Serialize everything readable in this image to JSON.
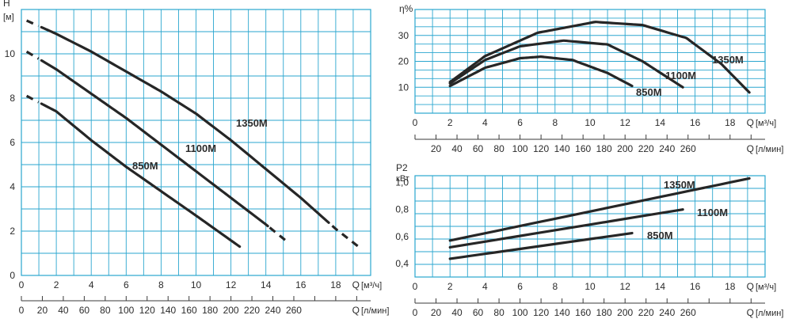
{
  "chart_data": [
    {
      "type": "line",
      "title": "",
      "ylabel": "H",
      "yunit": "[м]",
      "xlabel": "Q",
      "xunit": "[м³/ч]",
      "x2unit": "[л/мин]",
      "xlim": [
        0,
        20
      ],
      "ylim": [
        0,
        12
      ],
      "x_ticks": [
        "0",
        "2",
        "4",
        "6",
        "8",
        "10",
        "12",
        "14",
        "16",
        "18"
      ],
      "x2_ticks": [
        "0",
        "20",
        "40",
        "60",
        "80",
        "100",
        "120",
        "140",
        "160",
        "180",
        "200",
        "220",
        "240",
        "260"
      ],
      "y_ticks": [
        "0",
        "2",
        "4",
        "6",
        "8",
        "10"
      ],
      "series": [
        {
          "name": "850M",
          "x": [
            0.3,
            2,
            4,
            6,
            8,
            10,
            12.5
          ],
          "y": [
            8.1,
            7.4,
            6.1,
            4.9,
            3.8,
            2.7,
            1.3
          ],
          "dashed_until": 1
        },
        {
          "name": "1100M",
          "x": [
            0.3,
            2,
            4,
            6,
            8,
            10,
            12,
            14,
            15.1
          ],
          "y": [
            10.1,
            9.3,
            8.2,
            7.1,
            5.9,
            4.7,
            3.5,
            2.3,
            1.6
          ],
          "dashed_from": 14.2,
          "dashed_until": 1
        },
        {
          "name": "1350M",
          "x": [
            0.3,
            2,
            4,
            6,
            8,
            10,
            12,
            14,
            16,
            18,
            19.3
          ],
          "y": [
            11.5,
            10.9,
            10.1,
            9.2,
            8.3,
            7.3,
            6.1,
            4.8,
            3.5,
            2.1,
            1.3
          ],
          "dashed_from": 17.7,
          "dashed_until": 1
        }
      ]
    },
    {
      "type": "line",
      "title": "",
      "ylabel": "η%",
      "xlabel": "Q",
      "xunit": "[м³/ч]",
      "x2unit": "[л/мин]",
      "xlim": [
        0,
        20
      ],
      "ylim": [
        0,
        40
      ],
      "x_ticks": [
        "0",
        "2",
        "4",
        "6",
        "8",
        "10",
        "12",
        "14",
        "16",
        "18"
      ],
      "x2_ticks": [
        "20",
        "40",
        "60",
        "80",
        "100",
        "120",
        "140",
        "160",
        "180",
        "200",
        "220",
        "240",
        "260"
      ],
      "y_ticks": [
        "10",
        "20",
        "30"
      ],
      "series": [
        {
          "name": "850M",
          "x": [
            2,
            4,
            6,
            7.2,
            9,
            11,
            12.4
          ],
          "y": [
            10.5,
            17.5,
            21.2,
            21.8,
            20.5,
            15.5,
            10.5
          ]
        },
        {
          "name": "1100M",
          "x": [
            2,
            4,
            6,
            8.5,
            11,
            13,
            15.3
          ],
          "y": [
            11.5,
            20.5,
            25.8,
            28.0,
            26.5,
            20.0,
            10.0
          ]
        },
        {
          "name": "1350M",
          "x": [
            2,
            4,
            7,
            10.3,
            13,
            15.5,
            17.5,
            19.1
          ],
          "y": [
            12.0,
            22.0,
            31.0,
            35.2,
            34.0,
            29.0,
            19.0,
            8.0
          ]
        }
      ]
    },
    {
      "type": "line",
      "title": "",
      "ylabel": "P2",
      "yunit": "кВт",
      "xlabel": "Q",
      "xunit": "[м³/ч]",
      "x2unit": "[л/мин]",
      "xlim": [
        0,
        20
      ],
      "ylim": [
        0.3,
        1.05
      ],
      "x_ticks": [
        "0",
        "2",
        "4",
        "6",
        "8",
        "10",
        "12",
        "14",
        "16",
        "18"
      ],
      "x2_ticks": [
        "0",
        "20",
        "40",
        "60",
        "80",
        "100",
        "120",
        "140",
        "160",
        "180",
        "200",
        "220",
        "240",
        "260"
      ],
      "y_ticks": [
        "0,4",
        "0,6",
        "0,8",
        "1,0"
      ],
      "series": [
        {
          "name": "850M",
          "x": [
            2,
            12.4
          ],
          "y": [
            0.435,
            0.625
          ]
        },
        {
          "name": "1100M",
          "x": [
            2,
            15.3
          ],
          "y": [
            0.52,
            0.8
          ]
        },
        {
          "name": "1350M",
          "x": [
            2,
            19.1
          ],
          "y": [
            0.57,
            1.03
          ]
        }
      ]
    }
  ]
}
